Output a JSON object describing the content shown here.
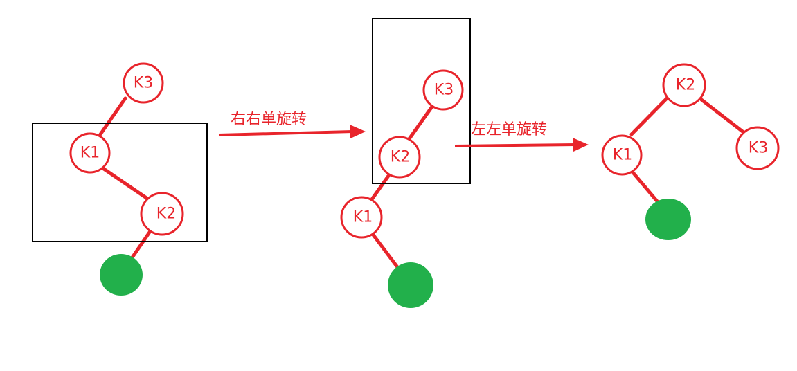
{
  "colors": {
    "edge": "#e8242b",
    "node_text": "#e8242b",
    "leaf": "#22b04b",
    "box": "#000000"
  },
  "arrows": {
    "first": "右右单旋转",
    "second": "左左单旋转"
  },
  "diagram1": {
    "k3": "K3",
    "k1": "K1",
    "k2": "K2"
  },
  "diagram2": {
    "k3": "K3",
    "k2": "K2",
    "k1": "K1"
  },
  "diagram3": {
    "k2": "K2",
    "k1": "K1",
    "k3": "K3"
  }
}
